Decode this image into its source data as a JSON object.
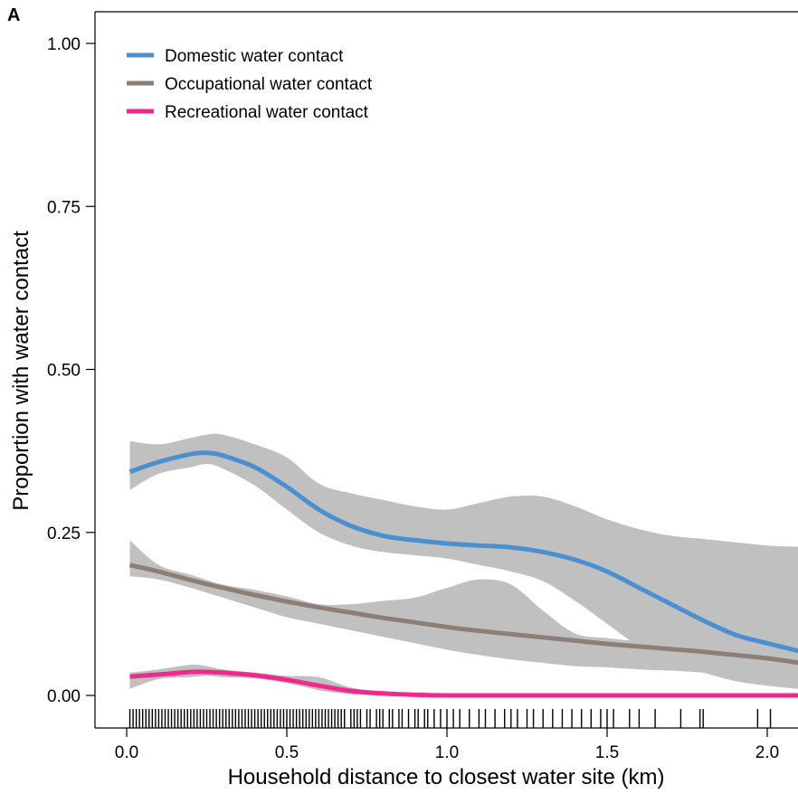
{
  "panel_label": "A",
  "chart_data": {
    "type": "line",
    "title": "",
    "xlabel": "Household distance to closest water site (km)",
    "ylabel": "Proportion with water contact",
    "xlim": [
      -0.1,
      2.1
    ],
    "ylim": [
      -0.05,
      1.05
    ],
    "xticks": [
      0.0,
      0.5,
      1.0,
      1.5,
      2.0
    ],
    "xtick_labels": [
      "0.0",
      "0.5",
      "1.0",
      "1.5",
      "2.0"
    ],
    "yticks": [
      0.0,
      0.25,
      0.5,
      0.75,
      1.0
    ],
    "ytick_labels": [
      "0.00",
      "0.25",
      "0.50",
      "0.75",
      "1.00"
    ],
    "grid": false,
    "legend_position": "top-left",
    "series": [
      {
        "name": "Domestic water contact",
        "color": "#4a90d0",
        "x": [
          0.01,
          0.1,
          0.2,
          0.25,
          0.3,
          0.4,
          0.5,
          0.6,
          0.7,
          0.8,
          0.9,
          1.0,
          1.1,
          1.2,
          1.3,
          1.4,
          1.5,
          1.6,
          1.7,
          1.8,
          1.9,
          2.0,
          2.1
        ],
        "y": [
          0.343,
          0.358,
          0.37,
          0.372,
          0.368,
          0.35,
          0.32,
          0.285,
          0.26,
          0.245,
          0.238,
          0.233,
          0.23,
          0.227,
          0.22,
          0.208,
          0.19,
          0.165,
          0.14,
          0.115,
          0.093,
          0.08,
          0.068
        ],
        "ci_upper": [
          0.39,
          0.385,
          0.395,
          0.4,
          0.4,
          0.385,
          0.365,
          0.325,
          0.31,
          0.3,
          0.29,
          0.285,
          0.295,
          0.305,
          0.305,
          0.29,
          0.27,
          0.255,
          0.245,
          0.24,
          0.235,
          0.23,
          0.228
        ],
        "ci_lower": [
          0.315,
          0.34,
          0.35,
          0.355,
          0.348,
          0.322,
          0.285,
          0.25,
          0.23,
          0.22,
          0.215,
          0.21,
          0.2,
          0.19,
          0.175,
          0.145,
          0.11,
          0.075,
          0.05,
          0.035,
          0.022,
          0.015,
          0.01
        ]
      },
      {
        "name": "Occupational water contact",
        "color": "#8c7f77",
        "x": [
          0.01,
          0.1,
          0.2,
          0.3,
          0.4,
          0.5,
          0.6,
          0.7,
          0.8,
          0.9,
          1.0,
          1.1,
          1.2,
          1.3,
          1.4,
          1.5,
          1.6,
          1.7,
          1.8,
          1.9,
          2.0,
          2.1
        ],
        "y": [
          0.2,
          0.19,
          0.177,
          0.165,
          0.154,
          0.144,
          0.135,
          0.127,
          0.119,
          0.112,
          0.105,
          0.099,
          0.094,
          0.089,
          0.084,
          0.079,
          0.075,
          0.071,
          0.067,
          0.062,
          0.057,
          0.05
        ],
        "ci_upper": [
          0.238,
          0.2,
          0.185,
          0.17,
          0.162,
          0.152,
          0.14,
          0.14,
          0.145,
          0.15,
          0.165,
          0.178,
          0.17,
          0.13,
          0.095,
          0.088,
          0.083,
          0.08,
          0.077,
          0.073,
          0.068,
          0.065
        ],
        "ci_lower": [
          0.183,
          0.178,
          0.165,
          0.15,
          0.135,
          0.12,
          0.11,
          0.1,
          0.09,
          0.08,
          0.07,
          0.062,
          0.055,
          0.05,
          0.045,
          0.043,
          0.04,
          0.038,
          0.035,
          0.03,
          0.025,
          0.02
        ]
      },
      {
        "name": "Recreational water contact",
        "color": "#ee2a8e",
        "x": [
          0.01,
          0.1,
          0.2,
          0.25,
          0.3,
          0.4,
          0.5,
          0.6,
          0.7,
          0.8,
          0.9,
          1.0,
          1.2,
          1.4,
          1.6,
          1.8,
          2.0,
          2.1
        ],
        "y": [
          0.029,
          0.032,
          0.036,
          0.036,
          0.035,
          0.031,
          0.024,
          0.015,
          0.007,
          0.003,
          0.001,
          0.0,
          0.0,
          0.0,
          0.0,
          0.0,
          0.0,
          0.0
        ],
        "ci_upper": [
          0.035,
          0.04,
          0.047,
          0.045,
          0.04,
          0.035,
          0.03,
          0.028,
          0.012,
          0.006,
          0.003,
          0.001,
          0.001,
          0.001,
          0.001,
          0.001,
          0.001,
          0.001
        ],
        "ci_lower": [
          0.01,
          0.025,
          0.028,
          0.03,
          0.028,
          0.026,
          0.019,
          0.008,
          0.002,
          0.0,
          0.0,
          0.0,
          0.0,
          0.0,
          0.0,
          0.0,
          0.0,
          0.0
        ]
      }
    ],
    "ci_band_color": "#c0c0c0",
    "rug_x": [
      0.01,
      0.02,
      0.03,
      0.04,
      0.05,
      0.06,
      0.07,
      0.08,
      0.09,
      0.1,
      0.11,
      0.12,
      0.13,
      0.14,
      0.15,
      0.16,
      0.17,
      0.18,
      0.19,
      0.2,
      0.21,
      0.22,
      0.23,
      0.24,
      0.25,
      0.26,
      0.27,
      0.28,
      0.29,
      0.3,
      0.31,
      0.32,
      0.33,
      0.34,
      0.35,
      0.36,
      0.37,
      0.38,
      0.39,
      0.4,
      0.41,
      0.42,
      0.43,
      0.44,
      0.45,
      0.46,
      0.47,
      0.48,
      0.49,
      0.5,
      0.51,
      0.52,
      0.53,
      0.54,
      0.55,
      0.56,
      0.57,
      0.58,
      0.59,
      0.6,
      0.61,
      0.62,
      0.63,
      0.64,
      0.65,
      0.66,
      0.67,
      0.68,
      0.7,
      0.71,
      0.72,
      0.73,
      0.75,
      0.76,
      0.78,
      0.79,
      0.8,
      0.82,
      0.83,
      0.85,
      0.86,
      0.88,
      0.9,
      0.91,
      0.93,
      0.94,
      0.96,
      0.98,
      1.0,
      1.02,
      1.04,
      1.07,
      1.1,
      1.12,
      1.15,
      1.18,
      1.2,
      1.22,
      1.25,
      1.27,
      1.3,
      1.33,
      1.36,
      1.39,
      1.42,
      1.45,
      1.48,
      1.5,
      1.52,
      1.57,
      1.6,
      1.65,
      1.73,
      1.79,
      1.8,
      1.97,
      2.01
    ]
  }
}
